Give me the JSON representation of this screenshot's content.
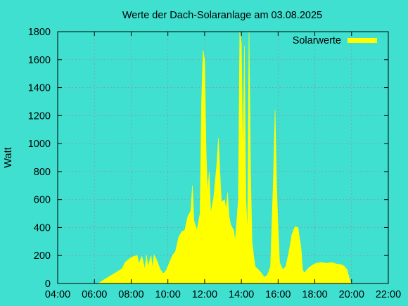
{
  "chart_data": {
    "type": "area",
    "title": "Werte der Dach-Solaranlage am 03.08.2025",
    "xlabel": "",
    "ylabel": "Watt",
    "xlim": [
      "04:00",
      "22:00"
    ],
    "ylim": [
      0,
      1800
    ],
    "x_ticks": [
      "04:00",
      "06:00",
      "08:00",
      "10:00",
      "12:00",
      "14:00",
      "16:00",
      "18:00",
      "20:00",
      "22:00"
    ],
    "y_ticks": [
      "0",
      "200",
      "400",
      "600",
      "800",
      "1000",
      "1200",
      "1400",
      "1600",
      "1800"
    ],
    "grid": true,
    "legend_position": "top-right",
    "series": [
      {
        "name": "Solarwerte",
        "color": "#ffff00",
        "points": [
          [
            "06:10",
            0
          ],
          [
            "06:20",
            10
          ],
          [
            "06:30",
            25
          ],
          [
            "06:45",
            45
          ],
          [
            "07:00",
            65
          ],
          [
            "07:15",
            85
          ],
          [
            "07:30",
            105
          ],
          [
            "07:40",
            150
          ],
          [
            "07:50",
            170
          ],
          [
            "08:00",
            185
          ],
          [
            "08:10",
            195
          ],
          [
            "08:20",
            200
          ],
          [
            "08:25",
            140
          ],
          [
            "08:35",
            195
          ],
          [
            "08:45",
            100
          ],
          [
            "08:50",
            205
          ],
          [
            "08:55",
            120
          ],
          [
            "09:05",
            200
          ],
          [
            "09:10",
            110
          ],
          [
            "09:15",
            205
          ],
          [
            "09:25",
            160
          ],
          [
            "09:35",
            100
          ],
          [
            "09:45",
            70
          ],
          [
            "09:55",
            95
          ],
          [
            "10:05",
            150
          ],
          [
            "10:15",
            200
          ],
          [
            "10:25",
            230
          ],
          [
            "10:35",
            330
          ],
          [
            "10:45",
            370
          ],
          [
            "10:55",
            380
          ],
          [
            "11:05",
            480
          ],
          [
            "11:15",
            520
          ],
          [
            "11:20",
            700
          ],
          [
            "11:25",
            450
          ],
          [
            "11:35",
            380
          ],
          [
            "11:45",
            500
          ],
          [
            "11:50",
            1300
          ],
          [
            "11:55",
            1670
          ],
          [
            "12:00",
            1600
          ],
          [
            "12:05",
            930
          ],
          [
            "12:10",
            650
          ],
          [
            "12:15",
            800
          ],
          [
            "12:20",
            500
          ],
          [
            "12:30",
            620
          ],
          [
            "12:40",
            860
          ],
          [
            "12:45",
            1040
          ],
          [
            "12:50",
            800
          ],
          [
            "12:55",
            580
          ],
          [
            "13:05",
            600
          ],
          [
            "13:10",
            530
          ],
          [
            "13:15",
            650
          ],
          [
            "13:20",
            480
          ],
          [
            "13:25",
            420
          ],
          [
            "13:35",
            380
          ],
          [
            "13:40",
            300
          ],
          [
            "13:50",
            600
          ],
          [
            "13:55",
            1800
          ],
          [
            "14:00",
            1720
          ],
          [
            "14:05",
            900
          ],
          [
            "14:10",
            1700
          ],
          [
            "14:15",
            600
          ],
          [
            "14:20",
            350
          ],
          [
            "14:25",
            1800
          ],
          [
            "14:30",
            800
          ],
          [
            "14:35",
            300
          ],
          [
            "14:40",
            200
          ],
          [
            "14:45",
            120
          ],
          [
            "14:55",
            100
          ],
          [
            "15:05",
            75
          ],
          [
            "15:15",
            45
          ],
          [
            "15:25",
            60
          ],
          [
            "15:35",
            120
          ],
          [
            "15:45",
            780
          ],
          [
            "15:50",
            1240
          ],
          [
            "15:55",
            700
          ],
          [
            "16:00",
            400
          ],
          [
            "16:05",
            150
          ],
          [
            "16:15",
            100
          ],
          [
            "16:25",
            120
          ],
          [
            "16:35",
            220
          ],
          [
            "16:45",
            350
          ],
          [
            "16:55",
            405
          ],
          [
            "17:05",
            400
          ],
          [
            "17:15",
            250
          ],
          [
            "17:20",
            100
          ],
          [
            "17:25",
            75
          ],
          [
            "17:35",
            100
          ],
          [
            "17:45",
            120
          ],
          [
            "17:55",
            135
          ],
          [
            "18:05",
            145
          ],
          [
            "18:20",
            150
          ],
          [
            "18:40",
            145
          ],
          [
            "18:55",
            150
          ],
          [
            "19:10",
            140
          ],
          [
            "19:25",
            135
          ],
          [
            "19:35",
            125
          ],
          [
            "19:45",
            100
          ],
          [
            "19:50",
            60
          ],
          [
            "19:55",
            20
          ],
          [
            "20:00",
            0
          ]
        ]
      }
    ]
  }
}
